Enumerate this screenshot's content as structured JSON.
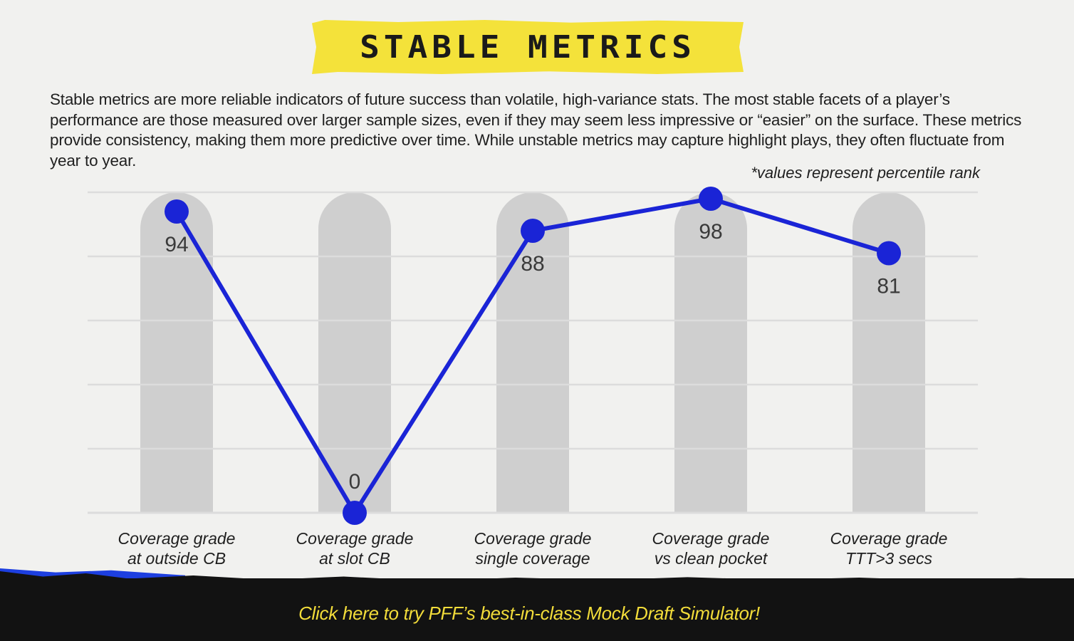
{
  "title": "STABLE METRICS",
  "intro": "Stable metrics are more reliable indicators of future success than volatile, high-variance stats. The most stable facets of a player’s performance are those measured over larger sample sizes, even if they may seem less impressive or “easier” on the surface. These metrics provide consistency, making them more predictive over time. While unstable metrics may capture highlight plays, they often fluctuate from year to year.",
  "note": "*values represent percentile rank",
  "cta": "Click here to try PFF’s best-in-class Mock Draft Simulator!",
  "colors": {
    "line": "#1a24d6",
    "bar": "#cfcfcf",
    "grid": "#dcdcdc",
    "label": "#3a3a3a",
    "cta": "#f2dc3a",
    "banner": "#f4e23a"
  },
  "chart_data": {
    "type": "line",
    "categories": [
      [
        "Coverage grade",
        "at outside CB"
      ],
      [
        "Coverage grade",
        "at slot CB"
      ],
      [
        "Coverage grade",
        "single coverage"
      ],
      [
        "Coverage grade",
        "vs clean pocket"
      ],
      [
        "Coverage grade",
        "TTT>3 secs"
      ]
    ],
    "values": [
      94,
      0,
      88,
      98,
      81
    ],
    "ylim": [
      0,
      100
    ],
    "grid": true,
    "background_bars": true,
    "data_labels": true
  }
}
